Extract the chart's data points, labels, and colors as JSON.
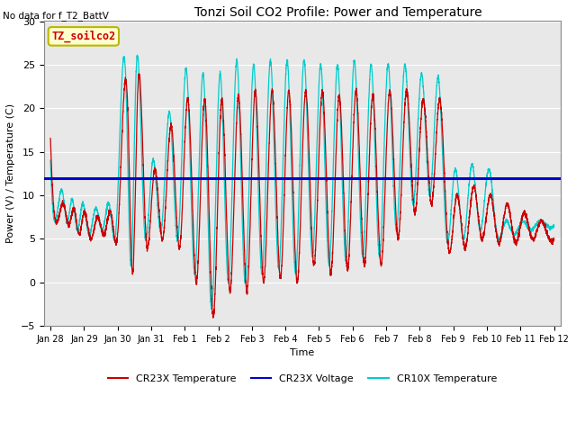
{
  "title": "Tonzi Soil CO2 Profile: Power and Temperature",
  "top_left_text": "No data for f_T2_BattV",
  "ylabel": "Power (V) / Temperature (C)",
  "xlabel": "Time",
  "ylim": [
    -5,
    30
  ],
  "yticks": [
    -5,
    0,
    5,
    10,
    15,
    20,
    25,
    30
  ],
  "legend_box_text": "TZ_soilco2",
  "legend_box_color": "#ffffcc",
  "legend_box_border": "#b8b800",
  "background_color": "#e8e8e8",
  "cr23x_temp_color": "#cc0000",
  "cr23x_volt_color": "#0000cc",
  "cr10x_temp_color": "#00cccc",
  "voltage_value": 12.0,
  "n_points": 5000
}
